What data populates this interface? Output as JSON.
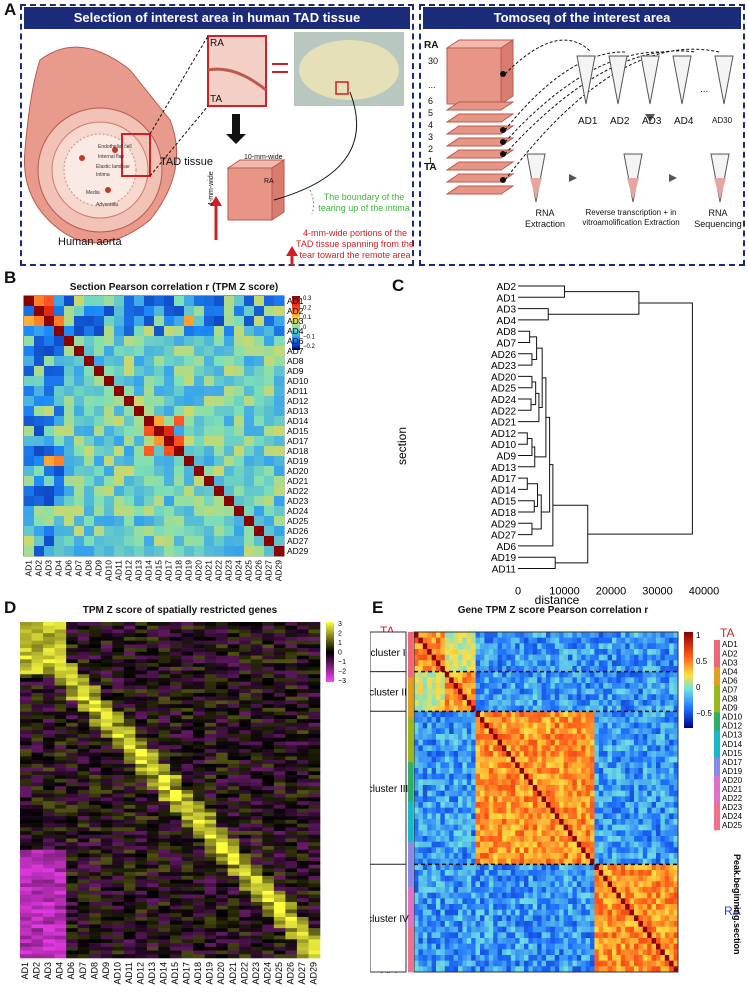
{
  "panel_labels": {
    "a": "A",
    "b": "B",
    "c": "C",
    "d": "D",
    "e": "E"
  },
  "panelA": {
    "left_title": "Selection of interest area in human TAD tissue",
    "right_title": "Tomoseq of the interest area",
    "ra": "RA",
    "ta": "TA",
    "tad_tissue": "TAD tissue",
    "human_aorta": "Human aorta",
    "layers": [
      "Endothelial cell",
      "Internal flap",
      "Elastic laminae",
      "Intima",
      "Media",
      "Adventitia"
    ],
    "width_10": "10-mm-wide",
    "width_4": "4-mm-wide",
    "green_note": "The boundary of the tearing up of the intima",
    "red_note": "4-mm-wide portions of the TAD tissue spanning from the tear toward the remote area",
    "slice_numbers": [
      "30",
      "...",
      "6",
      "5",
      "4",
      "3",
      "2",
      "1"
    ],
    "tubes": [
      "AD1",
      "AD2",
      "AD3",
      "AD4",
      "...",
      "AD30"
    ],
    "steps": [
      "RNA Extraction",
      "Reverse transcription + in vitroamolification Extraction",
      "RNA Sequencing"
    ]
  },
  "panelB": {
    "title": "Section Pearson correlation r (TPM Z score)",
    "labels": [
      "AD1",
      "AD2",
      "AD3",
      "AD4",
      "AD6",
      "AD7",
      "AD8",
      "AD9",
      "AD10",
      "AD11",
      "AD12",
      "AD13",
      "AD14",
      "AD15",
      "AD17",
      "AD18",
      "AD19",
      "AD20",
      "AD21",
      "AD22",
      "AD23",
      "AD24",
      "AD25",
      "AD26",
      "AD27",
      "AD29"
    ],
    "colorbar_ticks": [
      "0.3",
      "0.2",
      "0.1",
      "0",
      "−0.1",
      "−0.2"
    ]
  },
  "chart_data": [
    {
      "type": "dendrogram",
      "title": "",
      "ylabel": "section",
      "xlabel": "distance",
      "xlim": [
        0,
        40000
      ],
      "xticks": [
        "0",
        "10000",
        "20000",
        "30000",
        "40000"
      ],
      "leaves": [
        "AD2",
        "AD1",
        "AD3",
        "AD4",
        "AD8",
        "AD7",
        "AD26",
        "AD23",
        "AD20",
        "AD25",
        "AD24",
        "AD22",
        "AD21",
        "AD12",
        "AD10",
        "AD9",
        "AD13",
        "AD17",
        "AD14",
        "AD15",
        "AD18",
        "AD29",
        "AD27",
        "AD6",
        "AD19",
        "AD11"
      ],
      "merges": [
        {
          "a": 0,
          "b": 1,
          "h": 10000
        },
        {
          "a": 2,
          "b": 3,
          "h": 6500
        },
        {
          "a": 4,
          "b": 5,
          "h": 2500
        },
        {
          "a": 6,
          "b": 7,
          "h": 3000
        },
        {
          "a": 8,
          "b": 9,
          "h": 3000
        },
        {
          "a": 10,
          "b": 11,
          "h": 2800
        },
        {
          "a": 13,
          "b": 14,
          "h": 2000
        },
        {
          "a": 17,
          "b": 18,
          "h": 2000
        },
        {
          "a": 19,
          "b": 20,
          "h": 3500
        },
        {
          "a": 21,
          "b": 22,
          "h": 3000
        },
        {
          "a": 24,
          "b": 25,
          "h": 8000
        }
      ]
    },
    {
      "type": "heatmap",
      "title": "TPM Z score of spatially restricted genes",
      "columns": [
        "AD1",
        "AD2",
        "AD3",
        "AD4",
        "AD6",
        "AD7",
        "AD8",
        "AD9",
        "AD10",
        "AD11",
        "AD12",
        "AD13",
        "AD14",
        "AD15",
        "AD17",
        "AD18",
        "AD19",
        "AD20",
        "AD21",
        "AD22",
        "AD23",
        "AD24",
        "AD25",
        "AD26",
        "AD27",
        "AD29"
      ],
      "colorbar_ticks": [
        "3",
        "2",
        "1",
        "0",
        "−1",
        "−2",
        "−3"
      ]
    },
    {
      "type": "heatmap",
      "title": "Gene TPM Z score Pearson correlation r",
      "clusters": [
        "cluster I",
        "cluster II",
        "cluster III",
        "cluster IV"
      ],
      "colorbar_ticks": [
        "1",
        "0.5",
        "0",
        "−0.5"
      ],
      "legend": [
        "AD1",
        "AD2",
        "AD3",
        "AD4",
        "AD6",
        "AD7",
        "AD8",
        "AD9",
        "AD10",
        "AD12",
        "AD13",
        "AD14",
        "AD15",
        "AD17",
        "AD19",
        "AD20",
        "AD21",
        "AD22",
        "AD23",
        "AD24",
        "AD25"
      ],
      "legend_title": "Peak.beginning.section"
    }
  ],
  "panelE": {
    "ta": "TA",
    "ra": "RA"
  },
  "colors": {
    "navy": "#1c2a7a",
    "red": "#d21f26",
    "green": "#3db83a",
    "blue": "#2a3fd0"
  }
}
